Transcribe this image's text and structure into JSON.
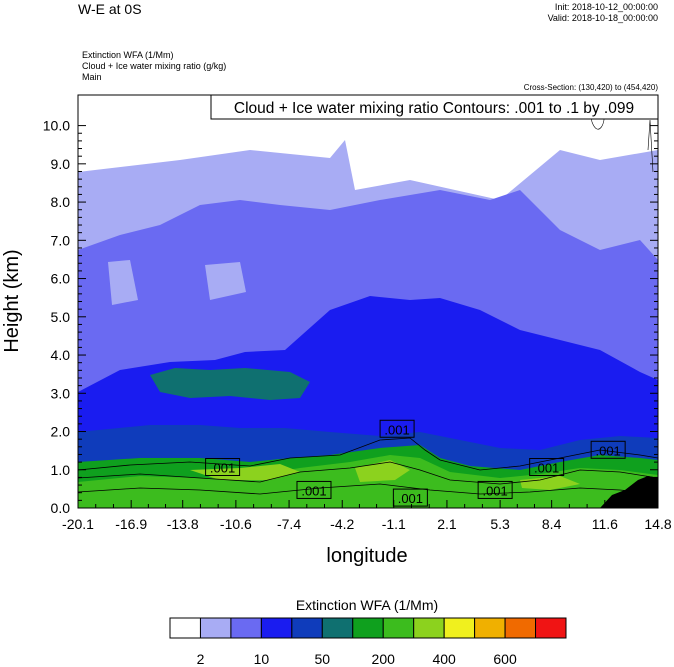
{
  "header": {
    "title": "W-E at 0S",
    "init": "Init: 2018-10-12_00:00:00",
    "valid": "Valid: 2018-10-18_00:00:00",
    "field_1": "Extinction WFA   (1/Mm)",
    "field_2": "Cloud + Ice water mixing ratio   (g/kg)",
    "field_3": "Main",
    "cross_section": "Cross-Section: (130,420) to (454,420)",
    "contour_note": "Cloud + Ice water mixing ratio Contours: .001 to .1 by .099"
  },
  "chart_data": {
    "type": "heatmap",
    "xlabel": "longitude",
    "ylabel": "Height (km)",
    "xlim": [
      -20.1,
      14.8
    ],
    "ylim": [
      0.0,
      10.8
    ],
    "x_ticks": [
      "-20.1",
      "-16.9",
      "-13.8",
      "-10.6",
      "-7.4",
      "-4.2",
      "-1.1",
      "2.1",
      "5.3",
      "8.4",
      "11.6",
      "14.8"
    ],
    "y_ticks": [
      "0.0",
      "1.0",
      "2.0",
      "3.0",
      "4.0",
      "5.0",
      "6.0",
      "7.0",
      "8.0",
      "9.0",
      "10.0"
    ],
    "x_tick_values": [
      -20.1,
      -16.9,
      -13.8,
      -10.6,
      -7.4,
      -4.2,
      -1.1,
      2.1,
      5.3,
      8.4,
      11.6,
      14.8
    ],
    "y_tick_values": [
      0,
      1,
      2,
      3,
      4,
      5,
      6,
      7,
      8,
      9,
      10
    ],
    "colorbar": {
      "title": "Extinction WFA  (1/Mm)",
      "colors": [
        "#ffffff",
        "#a8acf4",
        "#6a6af2",
        "#1a1cf0",
        "#0f3cbb",
        "#0f7070",
        "#0fa01e",
        "#3cbc1e",
        "#8cd21e",
        "#f0f01e",
        "#f0b000",
        "#f06a00",
        "#f01414"
      ],
      "labels": [
        "2",
        "10",
        "50",
        "200",
        "400",
        "600"
      ]
    },
    "contour_labels": [
      {
        "text": ".001",
        "x": -11.4,
        "y": 0.85
      },
      {
        "text": ".001",
        "x": -5.9,
        "y": 0.25
      },
      {
        "text": ".001",
        "x": -0.9,
        "y": 1.85
      },
      {
        "text": ".001",
        "x": -0.1,
        "y": 0.05
      },
      {
        "text": ".001",
        "x": 5.0,
        "y": 0.25
      },
      {
        "text": ".001",
        "x": 8.1,
        "y": 0.85
      },
      {
        "text": ".001",
        "x": 11.8,
        "y": 1.3
      }
    ]
  }
}
